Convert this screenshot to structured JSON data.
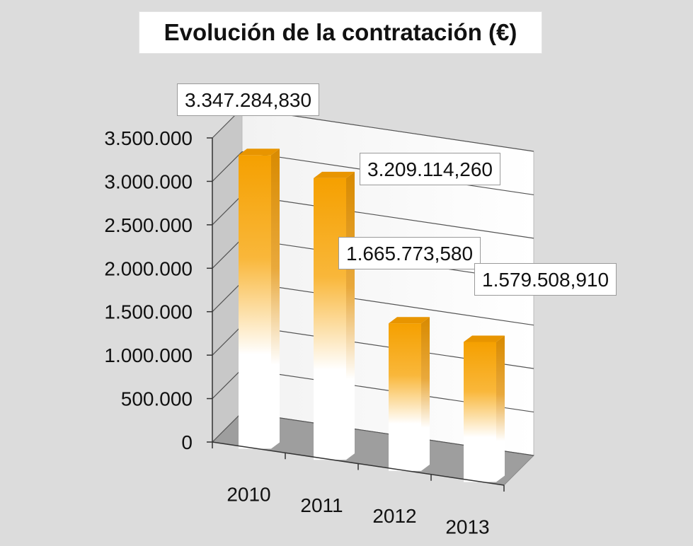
{
  "chart_data": {
    "type": "bar",
    "title": "Evolución de la contratación (€)",
    "categories": [
      "2010",
      "2011",
      "2012",
      "2013"
    ],
    "values": [
      3347284.83,
      3209114.26,
      1665773.58,
      1579508.91
    ],
    "data_labels": [
      "3.347.284,830",
      "3.209.114,260",
      "1.665.773,580",
      "1.579.508,910"
    ],
    "yticks": [
      "0",
      "500.000",
      "1.000.000",
      "1.500.000",
      "2.000.000",
      "2.500.000",
      "3.000.000",
      "3.500.000"
    ],
    "ylim": [
      0,
      3500000
    ],
    "grid": true,
    "style": "3d-column",
    "colors": {
      "bar": "#f5a000",
      "bar_side": "#d88a00",
      "bar_bottom": "#ffffff",
      "background": "#dcdcdc"
    }
  }
}
